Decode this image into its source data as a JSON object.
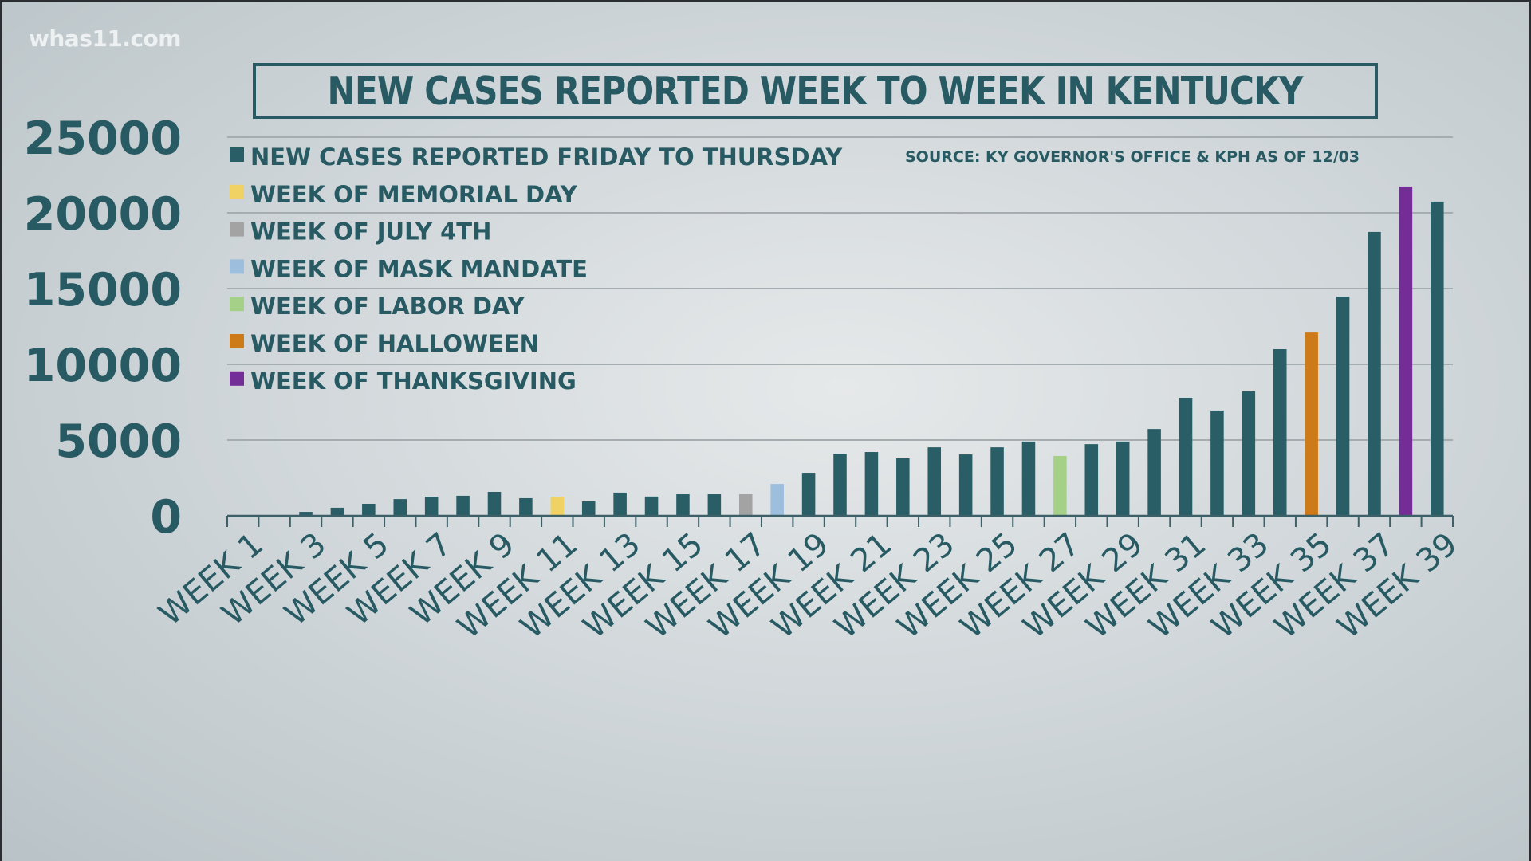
{
  "watermark": "whas11.com",
  "chart_data": {
    "type": "bar",
    "title": "NEW CASES REPORTED WEEK TO WEEK IN KENTUCKY",
    "source": "SOURCE: KY GOVERNOR'S OFFICE & KPH AS OF 12/03",
    "xlabel": "",
    "ylabel": "",
    "ylim": [
      0,
      25000
    ],
    "yticks": [
      0,
      5000,
      10000,
      15000,
      20000,
      25000
    ],
    "ytick_labels": [
      "0",
      "5000",
      "10000",
      "15000",
      "20000",
      "25000"
    ],
    "grid": true,
    "legend_position": "top-left",
    "categories": [
      "WEEK 1",
      "WEEK 2",
      "WEEK 3",
      "WEEK 4",
      "WEEK 5",
      "WEEK 6",
      "WEEK 7",
      "WEEK 8",
      "WEEK 9",
      "WEEK 10",
      "WEEK 11",
      "WEEK 12",
      "WEEK 13",
      "WEEK 14",
      "WEEK 15",
      "WEEK 16",
      "WEEK 17",
      "WEEK 18",
      "WEEK 19",
      "WEEK 20",
      "WEEK 21",
      "WEEK 22",
      "WEEK 23",
      "WEEK 24",
      "WEEK 25",
      "WEEK 26",
      "WEEK 27",
      "WEEK 28",
      "WEEK 29",
      "WEEK 30",
      "WEEK 31",
      "WEEK 32",
      "WEEK 33",
      "WEEK 34",
      "WEEK 35",
      "WEEK 36",
      "WEEK 37",
      "WEEK 38",
      "WEEK 39"
    ],
    "xtick_labels": [
      "WEEK 1",
      "WEEK 3",
      "WEEK 5",
      "WEEK 7",
      "WEEK 9",
      "WEEK 11",
      "WEEK 13",
      "WEEK 15",
      "WEEK 17",
      "WEEK 19",
      "WEEK 21",
      "WEEK 23",
      "WEEK 25",
      "WEEK 27",
      "WEEK 29",
      "WEEK 31",
      "WEEK 33",
      "WEEK 35",
      "WEEK 37",
      "WEEK 39"
    ],
    "values": [
      0,
      0,
      260,
      530,
      790,
      1100,
      1260,
      1320,
      1580,
      1160,
      1260,
      950,
      1530,
      1270,
      1420,
      1420,
      1420,
      2100,
      2840,
      4100,
      4210,
      3790,
      4520,
      4050,
      4520,
      4900,
      3950,
      4730,
      4900,
      5730,
      7790,
      6950,
      8210,
      11000,
      12100,
      14470,
      18740,
      21740,
      20740
    ],
    "bar_categories": [
      "regular",
      "regular",
      "regular",
      "regular",
      "regular",
      "regular",
      "regular",
      "regular",
      "regular",
      "regular",
      "memorial",
      "regular",
      "regular",
      "regular",
      "regular",
      "regular",
      "july4",
      "mask",
      "regular",
      "regular",
      "regular",
      "regular",
      "regular",
      "regular",
      "regular",
      "regular",
      "labor",
      "regular",
      "regular",
      "regular",
      "regular",
      "regular",
      "regular",
      "regular",
      "halloween",
      "regular",
      "regular",
      "thanksgiving",
      "regular"
    ],
    "legend": [
      {
        "key": "regular",
        "label": "NEW CASES REPORTED FRIDAY TO THURSDAY",
        "color": "#2a5e67"
      },
      {
        "key": "memorial",
        "label": "WEEK OF MEMORIAL DAY",
        "color": "#f0d264"
      },
      {
        "key": "july4",
        "label": "WEEK OF JULY 4TH",
        "color": "#a3a3a3"
      },
      {
        "key": "mask",
        "label": "WEEK OF MASK MANDATE",
        "color": "#9dbedd"
      },
      {
        "key": "labor",
        "label": "WEEK OF LABOR DAY",
        "color": "#a4d088"
      },
      {
        "key": "halloween",
        "label": "WEEK OF HALLOWEEN",
        "color": "#cd7a19"
      },
      {
        "key": "thanksgiving",
        "label": "WEEK OF THANKSGIVING",
        "color": "#742c97"
      }
    ],
    "colors": {
      "text": "#275a63",
      "axis": "#3d6068",
      "gridline": "#a6adb0"
    }
  }
}
